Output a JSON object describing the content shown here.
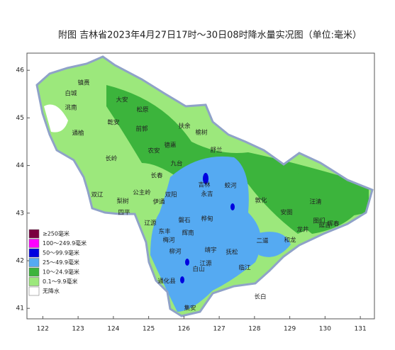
{
  "title": "附图  吉林省2023年4月27日17时～30日08时降水量实况图（单位:毫米）",
  "map": {
    "xlim": [
      121.55,
      131.4
    ],
    "ylim": [
      40.78,
      46.36
    ],
    "xticks": [
      122,
      123,
      124,
      125,
      126,
      127,
      128,
      129,
      130,
      131
    ],
    "yticks": [
      41,
      42,
      43,
      44,
      45,
      46
    ],
    "legend": [
      {
        "label": "≥250毫米",
        "color": "#7a0040"
      },
      {
        "label": "100～249.9毫米",
        "color": "#ff00ff"
      },
      {
        "label": "50～99.9毫米",
        "color": "#0000e0"
      },
      {
        "label": "25～49.9毫米",
        "color": "#55aaf2"
      },
      {
        "label": "10～24.9毫米",
        "color": "#3cb43c"
      },
      {
        "label": "0.1～9.9毫米",
        "color": "#9ce87c"
      },
      {
        "label": "无降水",
        "color": "#ffffff"
      }
    ],
    "places": [
      "镇赉",
      "白城",
      "洮南",
      "大安",
      "松原",
      "乾安",
      "前郭",
      "扶余",
      "榆树",
      "通榆",
      "农安",
      "德惠",
      "舒兰",
      "长岭",
      "九台",
      "长春",
      "吉林",
      "蛟河",
      "双辽",
      "公主岭",
      "双阳",
      "永吉",
      "汪清",
      "梨树",
      "伊通",
      "桦甸",
      "敦化",
      "图们",
      "四平",
      "辽源",
      "磐石",
      "安图",
      "延吉",
      "龙井",
      "珲春",
      "东丰",
      "和龙",
      "梅河",
      "辉南",
      "二道",
      "柳河",
      "靖宇",
      "抚松",
      "白山",
      "通化县",
      "江源",
      "临江",
      "集安",
      "长白"
    ]
  }
}
